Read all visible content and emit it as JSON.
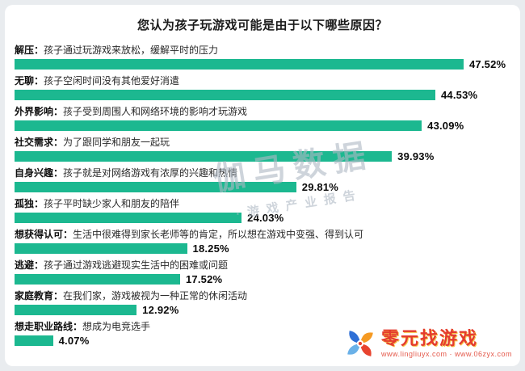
{
  "chart_data": {
    "type": "bar",
    "orientation": "horizontal",
    "title": "您认为孩子玩游戏可能是由于以下哪些原因？",
    "value_unit": "%",
    "xlim": [
      0,
      50
    ],
    "bar_color": "#1cb890",
    "legend": "none",
    "grid": false,
    "categories": [
      "解压：孩子通过玩游戏来放松，缓解平时的压力",
      "无聊：孩子空闲时间没有其他爱好消遣",
      "外界影响：孩子受到周围人和网络环境的影响才玩游戏",
      "社交需求：为了跟同学和朋友一起玩",
      "自身兴趣：孩子就是对网络游戏有浓厚的兴趣和热情",
      "孤独：孩子平时缺少家人和朋友的陪伴",
      "想获得认可：生活中很难得到家长老师等的肯定，所以想在游戏中变强、得到认可",
      "逃避：孩子通过游戏逃避现实生活中的困难或问题",
      "家庭教育：在我们家，游戏被视为一种正常的休闲活动",
      "想走职业路线：想成为电竞选手"
    ],
    "values": [
      47.52,
      44.53,
      43.09,
      39.93,
      29.81,
      24.03,
      18.25,
      17.52,
      12.92,
      4.07
    ],
    "items": [
      {
        "prefix": "解压：",
        "rest": "孩子通过玩游戏来放松，缓解平时的压力",
        "value": 47.52,
        "label": "47.52%"
      },
      {
        "prefix": "无聊：",
        "rest": "孩子空闲时间没有其他爱好消遣",
        "value": 44.53,
        "label": "44.53%"
      },
      {
        "prefix": "外界影响：",
        "rest": "孩子受到周围人和网络环境的影响才玩游戏",
        "value": 43.09,
        "label": "43.09%"
      },
      {
        "prefix": "社交需求：",
        "rest": "为了跟同学和朋友一起玩",
        "value": 39.93,
        "label": "39.93%"
      },
      {
        "prefix": "自身兴趣：",
        "rest": "孩子就是对网络游戏有浓厚的兴趣和热情",
        "value": 29.81,
        "label": "29.81%"
      },
      {
        "prefix": "孤独：",
        "rest": "孩子平时缺少家人和朋友的陪伴",
        "value": 24.03,
        "label": "24.03%"
      },
      {
        "prefix": "想获得认可：",
        "rest": "生活中很难得到家长老师等的肯定，所以想在游戏中变强、得到认可",
        "value": 18.25,
        "label": "18.25%"
      },
      {
        "prefix": "逃避：",
        "rest": "孩子通过游戏逃避现实生活中的困难或问题",
        "value": 17.52,
        "label": "17.52%"
      },
      {
        "prefix": "家庭教育：",
        "rest": "在我们家，游戏被视为一种正常的休闲活动",
        "value": 12.92,
        "label": "12.92%"
      },
      {
        "prefix": "想走职业路线：",
        "rest": "想成为电竞选手",
        "value": 4.07,
        "label": "4.07%"
      }
    ]
  },
  "watermark": {
    "line1": "伽马数据",
    "line2": "·游戏产业报告"
  },
  "brand": {
    "name": "零元找游戏",
    "urls": "www.lingliuyx.com · www.06zyx.com"
  },
  "colors": {
    "bar": "#1cb890",
    "accent_red": "#e43c2e",
    "watermark": "#aeb9c4"
  }
}
